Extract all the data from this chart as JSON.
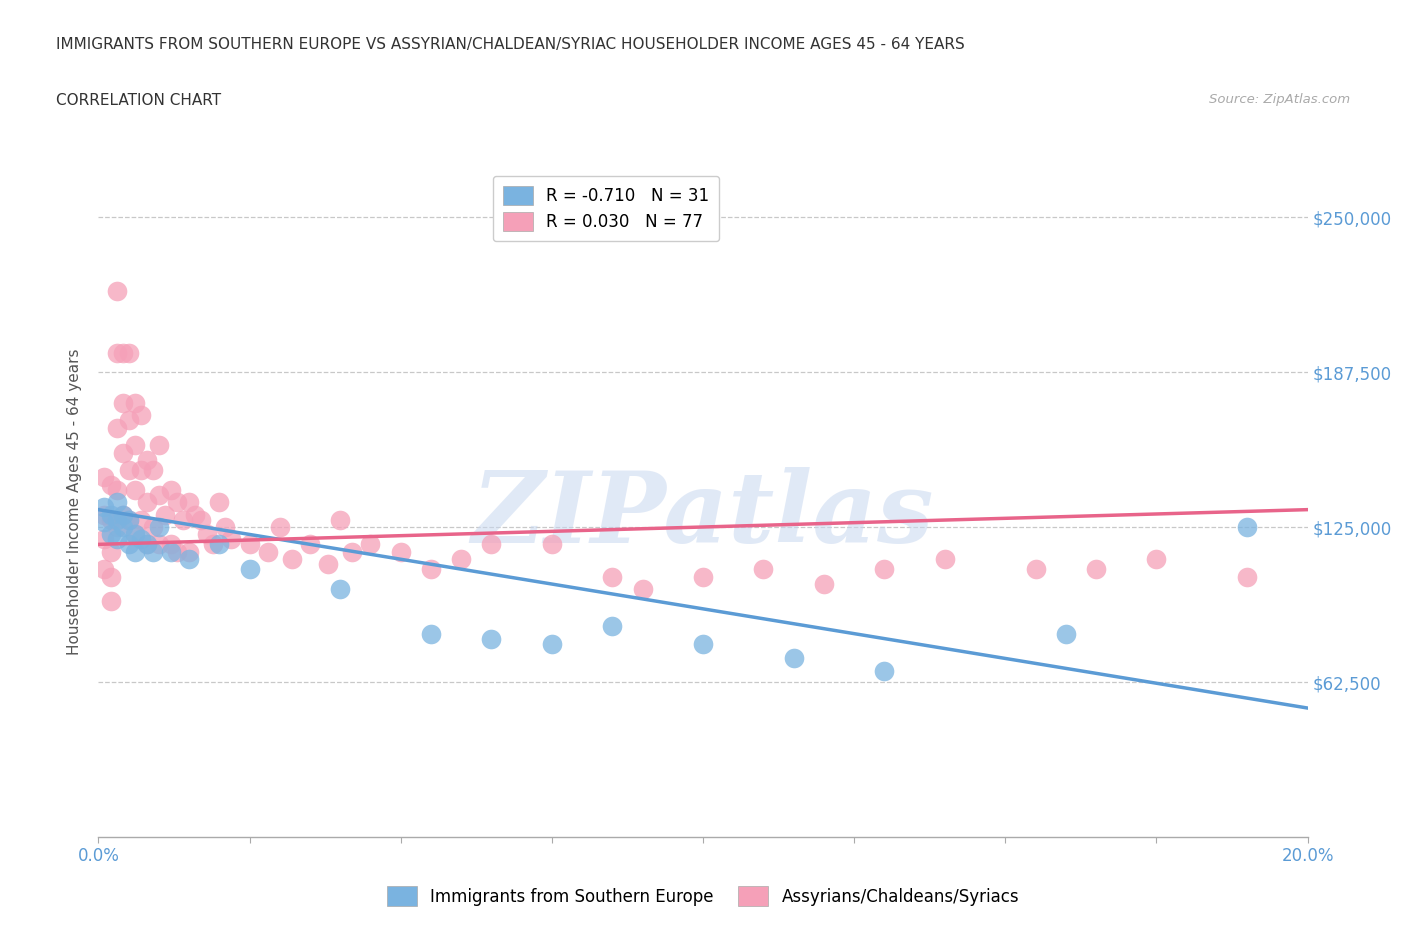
{
  "title_line1": "IMMIGRANTS FROM SOUTHERN EUROPE VS ASSYRIAN/CHALDEAN/SYRIAC HOUSEHOLDER INCOME AGES 45 - 64 YEARS",
  "title_line2": "CORRELATION CHART",
  "source_text": "Source: ZipAtlas.com",
  "ylabel": "Householder Income Ages 45 - 64 years",
  "xlim": [
    0.0,
    0.2
  ],
  "ylim": [
    0,
    270000
  ],
  "yticks": [
    62500,
    125000,
    187500,
    250000
  ],
  "ytick_labels": [
    "$62,500",
    "$125,000",
    "$187,500",
    "$250,000"
  ],
  "xticks": [
    0.0,
    0.025,
    0.05,
    0.075,
    0.1,
    0.125,
    0.15,
    0.175,
    0.2
  ],
  "xtick_labels": [
    "0.0%",
    "",
    "",
    "",
    "",
    "",
    "",
    "",
    "20.0%"
  ],
  "blue_R": -0.71,
  "blue_N": 31,
  "pink_R": 0.03,
  "pink_N": 77,
  "blue_color": "#7ab3e0",
  "pink_color": "#f5a0b8",
  "blue_line_color": "#5b9bd5",
  "pink_line_color": "#e8648a",
  "legend_blue_label": "Immigrants from Southern Europe",
  "legend_pink_label": "Assyrians/Chaldeans/Syriacs",
  "watermark": "ZIPatlas",
  "blue_scatter_x": [
    0.001,
    0.001,
    0.002,
    0.002,
    0.003,
    0.003,
    0.003,
    0.004,
    0.004,
    0.005,
    0.005,
    0.006,
    0.006,
    0.007,
    0.008,
    0.009,
    0.01,
    0.012,
    0.015,
    0.02,
    0.025,
    0.04,
    0.055,
    0.065,
    0.075,
    0.085,
    0.1,
    0.115,
    0.13,
    0.16,
    0.19
  ],
  "blue_scatter_y": [
    133000,
    127000,
    130000,
    122000,
    135000,
    128000,
    120000,
    130000,
    125000,
    128000,
    118000,
    122000,
    115000,
    120000,
    118000,
    115000,
    125000,
    115000,
    112000,
    118000,
    108000,
    100000,
    82000,
    80000,
    78000,
    85000,
    78000,
    72000,
    67000,
    82000,
    125000
  ],
  "pink_scatter_x": [
    0.001,
    0.001,
    0.001,
    0.001,
    0.002,
    0.002,
    0.002,
    0.002,
    0.002,
    0.003,
    0.003,
    0.003,
    0.003,
    0.003,
    0.004,
    0.004,
    0.004,
    0.004,
    0.005,
    0.005,
    0.005,
    0.005,
    0.006,
    0.006,
    0.006,
    0.006,
    0.007,
    0.007,
    0.007,
    0.008,
    0.008,
    0.008,
    0.009,
    0.009,
    0.01,
    0.01,
    0.01,
    0.011,
    0.012,
    0.012,
    0.013,
    0.013,
    0.014,
    0.015,
    0.015,
    0.016,
    0.017,
    0.018,
    0.019,
    0.02,
    0.021,
    0.022,
    0.025,
    0.028,
    0.03,
    0.032,
    0.035,
    0.038,
    0.04,
    0.042,
    0.045,
    0.05,
    0.055,
    0.06,
    0.065,
    0.075,
    0.085,
    0.09,
    0.1,
    0.11,
    0.12,
    0.13,
    0.14,
    0.155,
    0.165,
    0.175,
    0.19
  ],
  "pink_scatter_y": [
    145000,
    130000,
    120000,
    108000,
    142000,
    128000,
    115000,
    105000,
    95000,
    220000,
    195000,
    165000,
    140000,
    125000,
    195000,
    175000,
    155000,
    130000,
    195000,
    168000,
    148000,
    128000,
    175000,
    158000,
    140000,
    122000,
    170000,
    148000,
    128000,
    152000,
    135000,
    118000,
    148000,
    125000,
    158000,
    138000,
    118000,
    130000,
    140000,
    118000,
    135000,
    115000,
    128000,
    135000,
    115000,
    130000,
    128000,
    122000,
    118000,
    135000,
    125000,
    120000,
    118000,
    115000,
    125000,
    112000,
    118000,
    110000,
    128000,
    115000,
    118000,
    115000,
    108000,
    112000,
    118000,
    118000,
    105000,
    100000,
    105000,
    108000,
    102000,
    108000,
    112000,
    108000,
    108000,
    112000,
    105000
  ]
}
